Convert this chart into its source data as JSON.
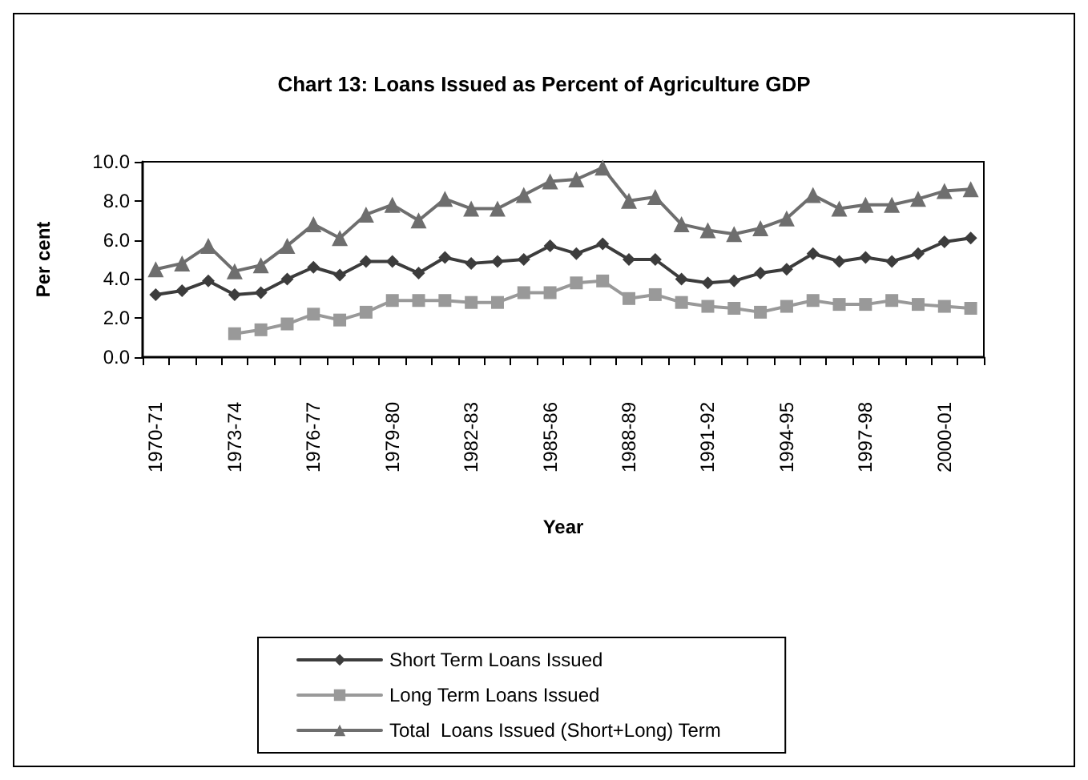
{
  "chart_data": {
    "type": "line",
    "title": "Chart 13: Loans Issued as Percent of Agriculture GDP",
    "xlabel": "Year",
    "ylabel": "Per cent",
    "categories": [
      "1970-71",
      null,
      null,
      "1973-74",
      null,
      null,
      "1976-77",
      null,
      null,
      "1979-80",
      null,
      null,
      "1982-83",
      null,
      null,
      "1985-86",
      null,
      null,
      "1988-89",
      null,
      null,
      "1991-92",
      null,
      null,
      "1994-95",
      null,
      null,
      "1997-98",
      null,
      null,
      "2000-01",
      null
    ],
    "series": [
      {
        "name": "Short Term Loans Issued",
        "color": "#3c3c3c",
        "marker": "diamond",
        "values": [
          3.2,
          3.4,
          3.9,
          3.2,
          3.3,
          4.0,
          4.6,
          4.2,
          4.9,
          4.9,
          4.3,
          5.1,
          4.8,
          4.9,
          5.0,
          5.7,
          5.3,
          5.8,
          5.0,
          5.0,
          4.0,
          3.8,
          3.9,
          4.3,
          4.5,
          5.3,
          4.9,
          5.1,
          4.9,
          5.3,
          5.9,
          6.1
        ]
      },
      {
        "name": "Long Term Loans Issued",
        "color": "#999999",
        "marker": "square",
        "values": [
          null,
          null,
          null,
          1.2,
          1.4,
          1.7,
          2.2,
          1.9,
          2.3,
          2.9,
          2.9,
          2.9,
          2.8,
          2.8,
          3.3,
          3.3,
          3.8,
          3.9,
          3.0,
          3.2,
          2.8,
          2.6,
          2.5,
          2.3,
          2.6,
          2.9,
          2.7,
          2.7,
          2.9,
          2.7,
          2.6,
          2.5
        ]
      },
      {
        "name": "Total  Loans Issued (Short+Long) Term",
        "color": "#6e6e6e",
        "marker": "triangle",
        "values": [
          4.5,
          4.8,
          5.7,
          4.4,
          4.7,
          5.7,
          6.8,
          6.1,
          7.3,
          7.8,
          7.0,
          8.1,
          7.6,
          7.6,
          8.3,
          9.0,
          9.1,
          9.7,
          8.0,
          8.2,
          6.8,
          6.5,
          6.3,
          6.6,
          7.1,
          8.3,
          7.6,
          7.8,
          7.8,
          8.1,
          8.5,
          8.6
        ]
      }
    ],
    "ylim": [
      0,
      10
    ],
    "yticks": [
      {
        "value": 0,
        "label": "0.0"
      },
      {
        "value": 2,
        "label": "2.0"
      },
      {
        "value": 4,
        "label": "4.0"
      },
      {
        "value": 6,
        "label": "6.0"
      },
      {
        "value": 8,
        "label": "8.0"
      },
      {
        "value": 10,
        "label": "10.0"
      }
    ],
    "grid": false,
    "legend": "bottom",
    "line_style": "solid"
  }
}
